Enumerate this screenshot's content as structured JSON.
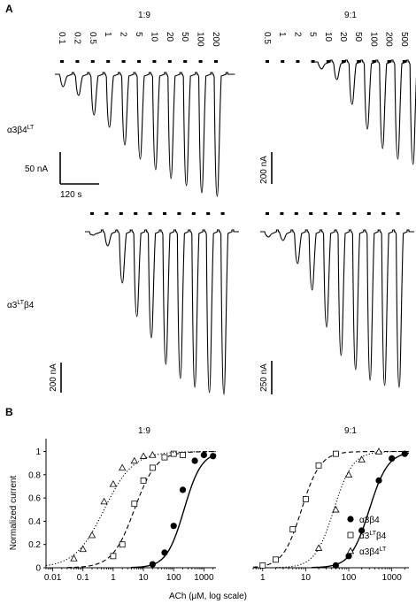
{
  "colors": {
    "ink": "#000000",
    "background": "#ffffff"
  },
  "panel_a": {
    "letter": "A",
    "ratio_left": "1:9",
    "ratio_right": "9:1",
    "row_top_label_main": "α3β4",
    "row_top_label_sup": "LT",
    "row_bottom_label_main": "α3",
    "row_bottom_label_sup": "LT",
    "row_bottom_label_end": "β4",
    "conc_left": [
      "0.1",
      "0.2",
      "0.5",
      "1",
      "2",
      "5",
      "10",
      "20",
      "50",
      "100",
      "200"
    ],
    "conc_right": [
      "0.5",
      "1",
      "2",
      "5",
      "10",
      "20",
      "50",
      "100",
      "200",
      "500"
    ],
    "scale_top_left_y": "50 nA",
    "scale_top_left_x": "120 s",
    "scale_top_right_y": "200 nA",
    "scale_bottom_left_y": "200 nA",
    "scale_bottom_right_y": "250 nA"
  },
  "chart_data": [
    {
      "type": "scatter",
      "panel": "B",
      "title": "1:9",
      "xlabel": "ACh (μM, log scale)",
      "ylabel": "Normalized current",
      "x_scale": "log",
      "xlim": [
        0.006,
        2500
      ],
      "ylim": [
        0,
        1.08
      ],
      "x_ticks": [
        "0.01",
        "0.1",
        "1",
        "10",
        "100",
        "1000"
      ],
      "y_ticks": [
        "0",
        "0.2",
        "0.4",
        "0.6",
        "0.8",
        "1"
      ],
      "series": [
        {
          "name": "α3β4",
          "marker": "filled-circle",
          "line": "solid",
          "ec50": 220,
          "hill": 1.5,
          "x": [
            20,
            50,
            100,
            200,
            500,
            1000,
            2000
          ],
          "y": [
            0.03,
            0.13,
            0.36,
            0.67,
            0.92,
            0.97,
            0.96
          ]
        },
        {
          "name": "α3LTβ4",
          "marker": "open-square",
          "line": "dashed",
          "ec50": 5,
          "hill": 1.2,
          "x": [
            1,
            2,
            5,
            10,
            20,
            50,
            100,
            200
          ],
          "y": [
            0.1,
            0.2,
            0.55,
            0.75,
            0.86,
            0.95,
            0.98,
            0.97
          ]
        },
        {
          "name": "α3β4LT",
          "marker": "open-triangle",
          "line": "dotted",
          "ec50": 0.5,
          "hill": 0.9,
          "x": [
            0.05,
            0.1,
            0.2,
            0.5,
            1,
            2,
            5,
            10,
            20
          ],
          "y": [
            0.08,
            0.16,
            0.28,
            0.57,
            0.72,
            0.86,
            0.92,
            0.96,
            0.97
          ]
        }
      ]
    },
    {
      "type": "scatter",
      "panel": "B",
      "title": "9:1",
      "xlabel": "ACh (μM, log scale)",
      "ylabel": "",
      "x_scale": "log",
      "xlim": [
        0.6,
        2500
      ],
      "ylim": [
        0,
        1.08
      ],
      "x_ticks": [
        "1",
        "10",
        "100",
        "1000"
      ],
      "y_ticks": [],
      "legend_position": "right",
      "series": [
        {
          "name": "α3β4",
          "marker": "filled-circle",
          "line": "solid",
          "ec50": 300,
          "hill": 2.0,
          "x": [
            50,
            100,
            200,
            500,
            1000,
            2000
          ],
          "y": [
            0.02,
            0.1,
            0.32,
            0.75,
            0.94,
            0.98
          ]
        },
        {
          "name": "α3LTβ4",
          "marker": "open-square",
          "line": "dashed",
          "ec50": 8,
          "hill": 2.0,
          "x": [
            1,
            2,
            5,
            10,
            20,
            50
          ],
          "y": [
            0.02,
            0.07,
            0.33,
            0.59,
            0.88,
            0.98
          ]
        },
        {
          "name": "α3β4LT",
          "marker": "open-triangle",
          "line": "dotted",
          "ec50": 45,
          "hill": 2.0,
          "x": [
            20,
            50,
            100,
            200,
            500
          ],
          "y": [
            0.17,
            0.5,
            0.8,
            0.93,
            1.0
          ]
        }
      ]
    }
  ],
  "panel_b": {
    "letter": "B",
    "legend": [
      {
        "label_main": "α3β4",
        "label_sup": "",
        "label_end": "",
        "marker": "filled-circle"
      },
      {
        "label_main": "α3",
        "label_sup": "LT",
        "label_end": "β4",
        "marker": "open-square"
      },
      {
        "label_main": "α3β4",
        "label_sup": "LT",
        "label_end": "",
        "marker": "open-triangle"
      }
    ]
  }
}
